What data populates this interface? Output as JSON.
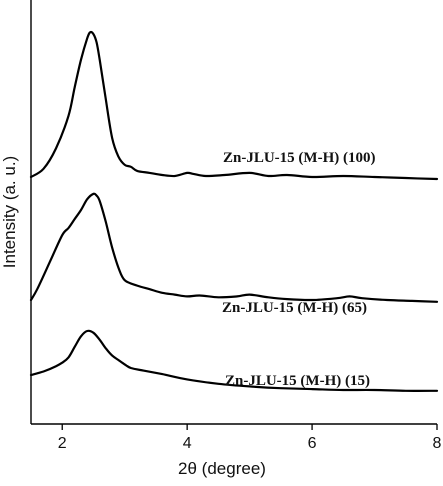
{
  "chart_data": {
    "type": "line",
    "title": "",
    "xlabel": "2θ (degree)",
    "ylabel": "Intensity (a. u.)",
    "xlim": [
      1.5,
      8
    ],
    "x_ticks": [
      2,
      4,
      6,
      8
    ],
    "x_tick_labels": [
      "2",
      "4",
      "6",
      "8"
    ],
    "y_ticks_shown": false,
    "grid": false,
    "legend": "none (labels placed beside each curve)",
    "series": [
      {
        "name": "Zn-JLU-15 (M-H) (100)",
        "x": [
          1.5,
          1.7,
          1.9,
          2.1,
          2.2,
          2.3,
          2.4,
          2.45,
          2.5,
          2.55,
          2.6,
          2.7,
          2.8,
          2.9,
          3.0,
          3.1,
          3.2,
          3.4,
          3.6,
          3.8,
          4.0,
          4.1,
          4.3,
          4.6,
          5.0,
          5.3,
          5.6,
          6.0,
          6.5,
          7.0,
          7.5,
          8.0
        ],
        "y": [
          0.0,
          0.08,
          0.28,
          0.6,
          0.88,
          1.15,
          1.36,
          1.42,
          1.4,
          1.32,
          1.15,
          0.75,
          0.38,
          0.2,
          0.12,
          0.1,
          0.06,
          0.04,
          0.02,
          0.01,
          0.04,
          0.03,
          0.01,
          0.02,
          0.04,
          0.01,
          0.02,
          0.0,
          0.01,
          0.0,
          -0.01,
          -0.02
        ]
      },
      {
        "name": "Zn-JLU-15 (M-H) (65)",
        "x": [
          1.5,
          1.6,
          1.8,
          2.0,
          2.1,
          2.2,
          2.3,
          2.4,
          2.5,
          2.55,
          2.6,
          2.7,
          2.8,
          2.9,
          3.0,
          3.2,
          3.4,
          3.6,
          3.8,
          4.0,
          4.2,
          4.5,
          4.8,
          5.0,
          5.3,
          5.6,
          6.0,
          6.4,
          6.6,
          6.8,
          7.2,
          7.6,
          8.0
        ],
        "y": [
          0.0,
          0.12,
          0.42,
          0.72,
          0.8,
          0.9,
          1.0,
          1.12,
          1.18,
          1.16,
          1.1,
          0.86,
          0.58,
          0.36,
          0.22,
          0.16,
          0.12,
          0.08,
          0.06,
          0.04,
          0.05,
          0.03,
          0.04,
          0.06,
          0.03,
          0.01,
          0.0,
          0.02,
          0.04,
          0.02,
          0.0,
          -0.01,
          -0.02
        ]
      },
      {
        "name": "Zn-JLU-15 (M-H) (15)",
        "x": [
          1.5,
          1.7,
          1.9,
          2.0,
          2.1,
          2.2,
          2.3,
          2.4,
          2.5,
          2.6,
          2.7,
          2.8,
          2.9,
          3.0,
          3.1,
          3.3,
          3.6,
          4.0,
          4.5,
          5.0,
          5.5,
          6.0,
          6.5,
          7.0,
          7.5,
          8.0
        ],
        "y": [
          0.0,
          0.04,
          0.1,
          0.14,
          0.2,
          0.32,
          0.44,
          0.5,
          0.48,
          0.4,
          0.3,
          0.22,
          0.17,
          0.12,
          0.08,
          0.05,
          0.01,
          -0.05,
          -0.1,
          -0.13,
          -0.15,
          -0.16,
          -0.17,
          -0.17,
          -0.18,
          -0.18
        ]
      }
    ]
  }
}
